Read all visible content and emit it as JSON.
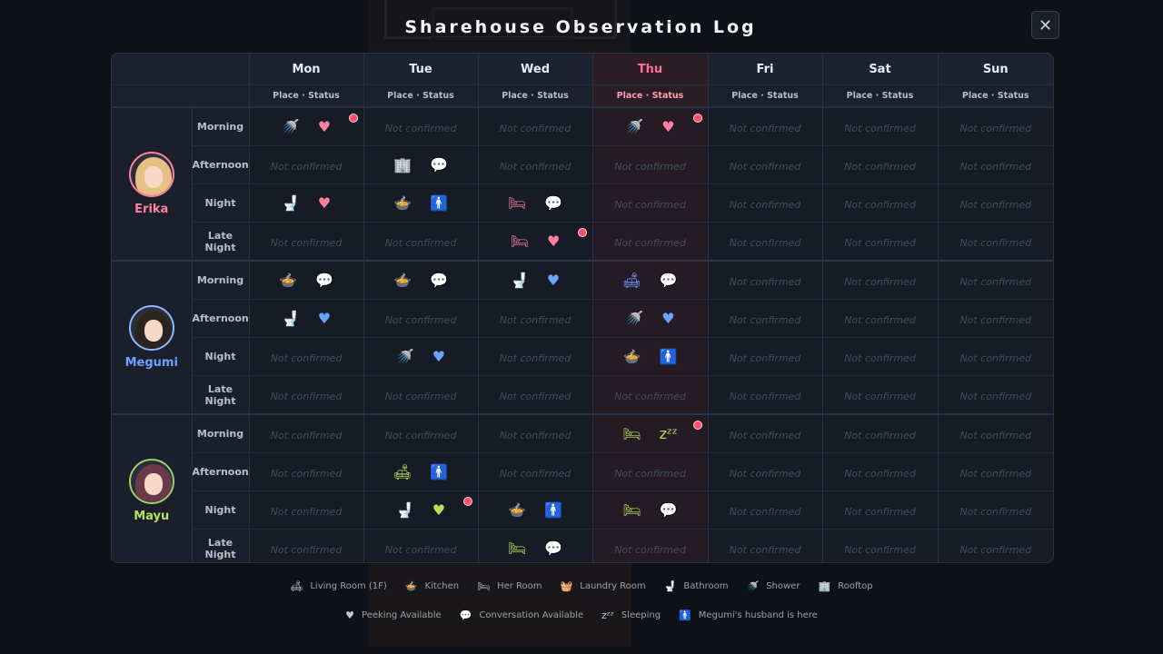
{
  "title": "Sharehouse Observation Log",
  "close_label": "✕",
  "days": [
    {
      "label": "Mon",
      "sub": "Place · Status",
      "today": false
    },
    {
      "label": "Tue",
      "sub": "Place · Status",
      "today": false
    },
    {
      "label": "Wed",
      "sub": "Place · Status",
      "today": false
    },
    {
      "label": "Thu",
      "sub": "Place · Status",
      "today": true
    },
    {
      "label": "Fri",
      "sub": "Place · Status",
      "today": false
    },
    {
      "label": "Sat",
      "sub": "Place · Status",
      "today": false
    },
    {
      "label": "Sun",
      "sub": "Place · Status",
      "today": false
    }
  ],
  "slots": [
    "Morning",
    "Afternoon",
    "Night",
    "Late Night"
  ],
  "not_confirmed": "Not confirmed",
  "icons": {
    "shower": "🚿",
    "kitchen": "🍲",
    "room": "🛏",
    "laundry": "🧺",
    "bathroom": "🚽",
    "rooftop": "🏢",
    "living": "🛋",
    "peek": "♥",
    "talk": "💬",
    "sleep": "zᶻᶻ",
    "husband": "🚹"
  },
  "characters": [
    {
      "name": "Erika",
      "theme": "pink",
      "hair": "#e6c084",
      "grid": [
        [
          {
            "place": "shower",
            "status": "peek",
            "dot": true
          },
          null,
          null,
          {
            "place": "shower",
            "status": "peek",
            "dot": true
          },
          null,
          null,
          null
        ],
        [
          null,
          {
            "place": "rooftop",
            "status": "talk"
          },
          null,
          null,
          null,
          null,
          null
        ],
        [
          {
            "place": "bathroom",
            "status": "peek"
          },
          {
            "place": "kitchen",
            "status": "husband"
          },
          {
            "place": "room",
            "status": "talk"
          },
          null,
          null,
          null,
          null
        ],
        [
          null,
          null,
          {
            "place": "room",
            "status": "peek",
            "dot": true
          },
          null,
          null,
          null,
          null
        ]
      ]
    },
    {
      "name": "Megumi",
      "theme": "blue",
      "hair": "#2b2320",
      "grid": [
        [
          {
            "place": "kitchen",
            "status": "talk"
          },
          {
            "place": "kitchen",
            "status": "talk"
          },
          {
            "place": "bathroom",
            "status": "peek"
          },
          {
            "place": "living",
            "status": "talk"
          },
          null,
          null,
          null
        ],
        [
          {
            "place": "bathroom",
            "status": "peek"
          },
          null,
          null,
          {
            "place": "shower",
            "status": "peek"
          },
          null,
          null,
          null
        ],
        [
          null,
          {
            "place": "shower",
            "status": "peek"
          },
          null,
          {
            "place": "kitchen",
            "status": "husband"
          },
          null,
          null,
          null
        ],
        [
          null,
          null,
          null,
          null,
          null,
          null,
          null
        ]
      ]
    },
    {
      "name": "Mayu",
      "theme": "green",
      "hair": "#6b3a4a",
      "grid": [
        [
          null,
          null,
          null,
          {
            "place": "room",
            "status": "sleep",
            "dot": true
          },
          null,
          null,
          null
        ],
        [
          null,
          {
            "place": "living",
            "status": "husband"
          },
          null,
          null,
          null,
          null,
          null
        ],
        [
          null,
          {
            "place": "bathroom",
            "status": "peek",
            "dot": true
          },
          {
            "place": "kitchen",
            "status": "husband"
          },
          {
            "place": "room",
            "status": "talk"
          },
          null,
          null,
          null
        ],
        [
          null,
          null,
          {
            "place": "room",
            "status": "talk"
          },
          null,
          null,
          null,
          null
        ]
      ]
    }
  ],
  "legend_places": [
    {
      "icon": "living",
      "label": "Living Room (1F)"
    },
    {
      "icon": "kitchen",
      "label": "Kitchen"
    },
    {
      "icon": "room",
      "label": "Her Room"
    },
    {
      "icon": "laundry",
      "label": "Laundry Room"
    },
    {
      "icon": "bathroom",
      "label": "Bathroom"
    },
    {
      "icon": "shower",
      "label": "Shower"
    },
    {
      "icon": "rooftop",
      "label": "Rooftop"
    }
  ],
  "legend_status": [
    {
      "icon": "peek",
      "label": "Peeking Available"
    },
    {
      "icon": "talk",
      "label": "Conversation Available"
    },
    {
      "icon": "sleep",
      "label": "Sleeping"
    },
    {
      "icon": "husband",
      "label": "Megumi's husband is here"
    }
  ]
}
